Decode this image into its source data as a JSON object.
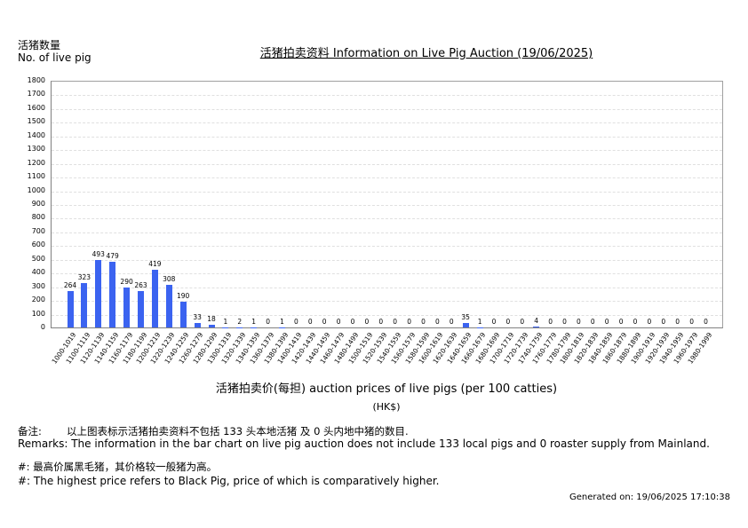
{
  "header": {
    "y_axis_label_cn": "活猪数量",
    "y_axis_label_en": "No. of live pig",
    "title": "活猪拍卖资料 Information on Live Pig Auction (19/06/2025)"
  },
  "chart_data": {
    "type": "bar",
    "title": "活猪拍卖资料 Information on Live Pig Auction (19/06/2025)",
    "xlabel": "活猪拍卖价(每担) auction prices of live pigs (per 100 catties)",
    "xlabel_unit": "(HK$)",
    "ylabel": "活猪数量 No. of live pig",
    "ylim": [
      0,
      1800
    ],
    "yticks": [
      0,
      100,
      200,
      300,
      400,
      500,
      600,
      700,
      800,
      900,
      1000,
      1100,
      1200,
      1300,
      1400,
      1500,
      1600,
      1700,
      1800
    ],
    "grid": true,
    "bar_color": "#3b63f0",
    "categories": [
      "1000-1019",
      "1100-1119",
      "1120-1139",
      "1140-1159",
      "1160-1179",
      "1180-1199",
      "1200-1219",
      "1220-1239",
      "1240-1259",
      "1260-1279",
      "1280-1299",
      "1300-1319",
      "1320-1339",
      "1340-1359",
      "1360-1379",
      "1380-1399",
      "1400-1419",
      "1420-1439",
      "1440-1459",
      "1460-1479",
      "1480-1499",
      "1500-1519",
      "1520-1539",
      "1540-1559",
      "1560-1579",
      "1580-1599",
      "1600-1619",
      "1620-1639",
      "1640-1659",
      "1660-1679",
      "1680-1699",
      "1700-1719",
      "1720-1739",
      "1740-1759",
      "1760-1779",
      "1780-1799",
      "1800-1819",
      "1820-1839",
      "1840-1859",
      "1860-1879",
      "1880-1899",
      "1900-1919",
      "1920-1939",
      "1940-1959",
      "1960-1979",
      "1980-1999"
    ],
    "values": [
      264,
      323,
      493,
      479,
      290,
      263,
      419,
      308,
      190,
      33,
      18,
      1,
      2,
      1,
      0,
      1,
      0,
      0,
      0,
      0,
      0,
      0,
      0,
      0,
      0,
      0,
      0,
      0,
      35,
      1,
      0,
      0,
      0,
      4,
      0,
      0,
      0,
      0,
      0,
      0,
      0,
      0,
      0,
      0,
      0,
      0
    ]
  },
  "remarks": {
    "cn_label": "备注:",
    "cn_text": "以上图表标示活猪拍卖资料不包括 133 头本地活猪 及 0 头内地中猪的数目.",
    "en_text": "Remarks: The information in the bar chart on live pig auction does not include 133 local pigs and 0 roaster supply from Mainland."
  },
  "notes": {
    "cn": "#: 最高价属黑毛猪，其价格较一般猪为高。",
    "en": "#: The highest price refers to Black Pig, price of which is comparatively higher."
  },
  "footer": {
    "generated": "Generated on: 19/06/2025 17:10:38"
  }
}
